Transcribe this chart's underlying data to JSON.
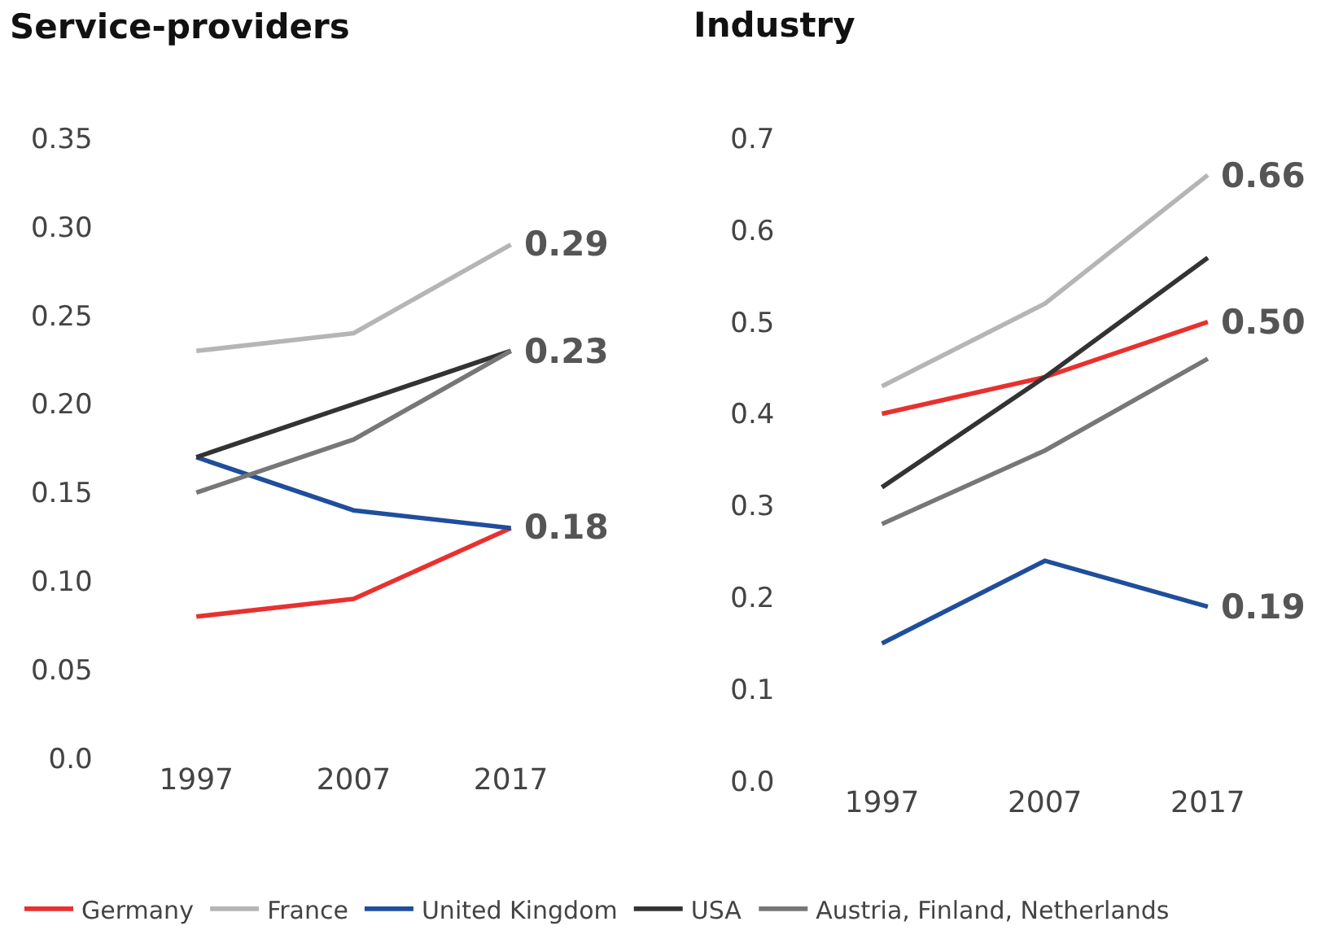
{
  "chart_data": [
    {
      "type": "line",
      "title": "Service-providers",
      "categories": [
        "1997",
        "2007",
        "2017"
      ],
      "series": [
        {
          "name": "Germany",
          "color": "#e8312f",
          "values": [
            0.08,
            0.09,
            0.13
          ]
        },
        {
          "name": "France",
          "color": "#b5b5b5",
          "values": [
            0.23,
            0.24,
            0.29
          ]
        },
        {
          "name": "United Kingdom",
          "color": "#1f4e9c",
          "values": [
            0.17,
            0.14,
            0.13
          ]
        },
        {
          "name": "USA",
          "color": "#333333",
          "values": [
            0.17,
            0.2,
            0.23
          ]
        },
        {
          "name": "Austria, Finland, Netherlands",
          "color": "#777777",
          "values": [
            0.15,
            0.18,
            0.23
          ]
        }
      ],
      "ylim": [
        0,
        0.35
      ],
      "yticks": [
        {
          "value": 0,
          "label": "0.0"
        },
        0.05,
        {
          "value": 0.1,
          "label": "0.10"
        },
        0.15,
        {
          "value": 0.2,
          "label": "0.20"
        },
        0.25,
        {
          "value": 0.3,
          "label": "0.30"
        },
        0.35
      ],
      "annotations": [
        {
          "text": "0.29",
          "x": "2017",
          "y": 0.29
        },
        {
          "text": "0.23",
          "x": "2017",
          "y": 0.23
        },
        {
          "text": "0.18",
          "x": "2017",
          "y": 0.13
        }
      ],
      "grid": false,
      "legend": "bottom",
      "marker": "none",
      "line_style": "solid"
    },
    {
      "type": "line",
      "title": "Industry",
      "categories": [
        "1997",
        "2007",
        "2017"
      ],
      "series": [
        {
          "color": "#e8312f",
          "values": [
            0.4,
            0.44,
            0.5
          ]
        },
        {
          "color": "#b5b5b5",
          "values": [
            0.43,
            0.52,
            0.66
          ]
        },
        {
          "color": "#1f4e9c",
          "values": [
            0.15,
            0.24,
            0.19
          ]
        },
        {
          "color": "#333333",
          "values": [
            0.32,
            0.44,
            0.57
          ]
        },
        {
          "color": "#777777",
          "values": [
            0.28,
            0.36,
            0.46
          ]
        }
      ],
      "ylim": [
        0,
        0.7
      ],
      "yticks": [
        {
          "value": 0,
          "label": "0.0"
        },
        0.1,
        0.2,
        0.3,
        0.4,
        0.5,
        0.6,
        0.7
      ],
      "annotations": [
        {
          "text": "0.66",
          "x": "2017",
          "y": 0.66
        },
        {
          "text": "0.50",
          "x": "2017",
          "y": 0.5
        },
        {
          "text": "0.19",
          "x": "2017",
          "y": 0.19
        }
      ],
      "grid": false,
      "marker": "none",
      "line_style": "solid"
    }
  ]
}
